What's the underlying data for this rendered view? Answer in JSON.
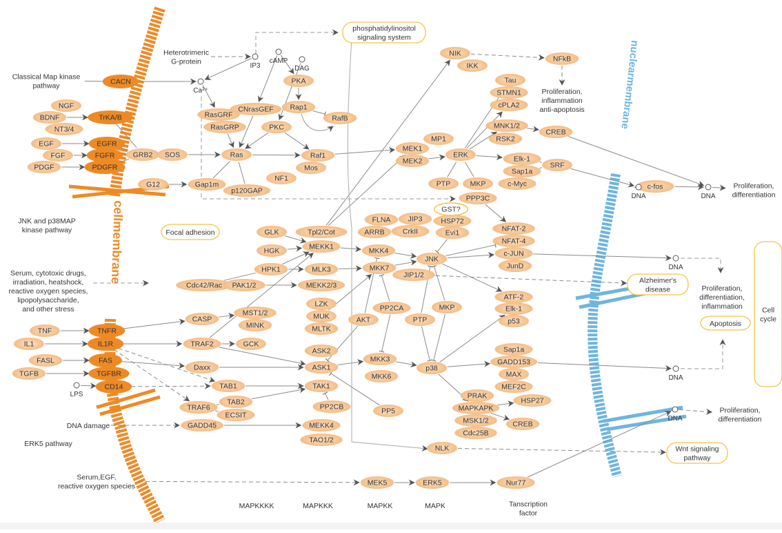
{
  "colors": {
    "gene_fill": "#f5c38e",
    "gene_center": "#fbe0c2",
    "receptor_fill": "#ee8a25",
    "pathway_border": "#f3c443",
    "cell_membrane": "#ee8a25",
    "nuclear_membrane": "#6fb5de",
    "edge": "#8a8a8a",
    "arrowhead": "#555555",
    "text": "#333333"
  },
  "membranes": {
    "cell_membrane_text": "cellmembrane",
    "nuclear_membrane_text": "nuclearmembrane"
  },
  "nodes": [
    {
      "id": "CACN",
      "label": "CACN",
      "kind": "receptor"
    },
    {
      "id": "TrKA",
      "label": "TrKA/B",
      "kind": "receptor"
    },
    {
      "id": "EGFR",
      "label": "EGFR",
      "kind": "receptor"
    },
    {
      "id": "FGFR",
      "label": "FGFR",
      "kind": "receptor"
    },
    {
      "id": "PDGFR",
      "label": "PDGFR",
      "kind": "receptor"
    },
    {
      "id": "TNFR",
      "label": "TNFR",
      "kind": "receptor"
    },
    {
      "id": "IL1R",
      "label": "IL1R",
      "kind": "receptor"
    },
    {
      "id": "FAS",
      "label": "FAS",
      "kind": "receptor"
    },
    {
      "id": "TGFBR",
      "label": "TGFBR",
      "kind": "receptor"
    },
    {
      "id": "CD14",
      "label": "CD14",
      "kind": "receptor"
    },
    {
      "id": "NGF",
      "label": "NGF",
      "kind": "gene"
    },
    {
      "id": "BDNF",
      "label": "BDNF",
      "kind": "gene"
    },
    {
      "id": "NT34",
      "label": "NT3/4",
      "kind": "gene"
    },
    {
      "id": "EGF",
      "label": "EGF",
      "kind": "gene"
    },
    {
      "id": "FGF",
      "label": "FGF",
      "kind": "gene"
    },
    {
      "id": "PDGF",
      "label": "PDGF",
      "kind": "gene"
    },
    {
      "id": "TNF",
      "label": "TNF",
      "kind": "gene"
    },
    {
      "id": "IL1",
      "label": "IL1",
      "kind": "gene"
    },
    {
      "id": "FASL",
      "label": "FASL",
      "kind": "gene"
    },
    {
      "id": "TGFB",
      "label": "TGFB",
      "kind": "gene"
    },
    {
      "id": "GRB2",
      "label": "GRB2",
      "kind": "gene"
    },
    {
      "id": "SOS",
      "label": "SOS",
      "kind": "gene"
    },
    {
      "id": "G12",
      "label": "G12",
      "kind": "gene"
    },
    {
      "id": "Gap1m",
      "label": "Gap1m",
      "kind": "gene"
    },
    {
      "id": "Ras",
      "label": "Ras",
      "kind": "gene"
    },
    {
      "id": "p120GAP",
      "label": "p120GAP",
      "kind": "gene"
    },
    {
      "id": "NF1",
      "label": "NF1",
      "kind": "gene"
    },
    {
      "id": "RasGRF",
      "label": "RasGRF",
      "kind": "gene"
    },
    {
      "id": "RasGRP",
      "label": "RasGRP",
      "kind": "gene"
    },
    {
      "id": "CNrasGEF",
      "label": "CNrasGEF",
      "kind": "gene"
    },
    {
      "id": "PKC",
      "label": "PKC",
      "kind": "gene"
    },
    {
      "id": "PKA",
      "label": "PKA",
      "kind": "gene"
    },
    {
      "id": "Rap1",
      "label": "Rap1",
      "kind": "gene"
    },
    {
      "id": "RafB",
      "label": "RafB",
      "kind": "gene"
    },
    {
      "id": "Raf1",
      "label": "Raf1",
      "kind": "gene"
    },
    {
      "id": "Mos",
      "label": "Mos",
      "kind": "gene"
    },
    {
      "id": "MEK1",
      "label": "MEK1",
      "kind": "gene"
    },
    {
      "id": "MEK2",
      "label": "MEK2",
      "kind": "gene"
    },
    {
      "id": "MP1",
      "label": "MP1",
      "kind": "gene"
    },
    {
      "id": "ERK",
      "label": "ERK",
      "kind": "gene"
    },
    {
      "id": "PTP1",
      "label": "PTP",
      "kind": "gene"
    },
    {
      "id": "MKP1",
      "label": "MKP",
      "kind": "gene"
    },
    {
      "id": "NIK",
      "label": "NIK",
      "kind": "gene"
    },
    {
      "id": "IKK",
      "label": "IKK",
      "kind": "gene"
    },
    {
      "id": "NFkB",
      "label": "NFkB",
      "kind": "gene"
    },
    {
      "id": "Tau",
      "label": "Tau",
      "kind": "gene"
    },
    {
      "id": "STMN1",
      "label": "STMN1",
      "kind": "gene"
    },
    {
      "id": "cPLA2",
      "label": "cPLA2",
      "kind": "gene"
    },
    {
      "id": "MNK",
      "label": "MNK1/2",
      "kind": "gene"
    },
    {
      "id": "RSK2",
      "label": "RSK2",
      "kind": "gene"
    },
    {
      "id": "CREB1",
      "label": "CREB",
      "kind": "gene"
    },
    {
      "id": "Elk1a",
      "label": "Elk-1",
      "kind": "gene"
    },
    {
      "id": "Sap1a1",
      "label": "Sap1a",
      "kind": "gene"
    },
    {
      "id": "SRF",
      "label": "SRF",
      "kind": "gene"
    },
    {
      "id": "cMyc",
      "label": "c-Myc",
      "kind": "gene"
    },
    {
      "id": "PPP3C",
      "label": "PPP3C",
      "kind": "gene"
    },
    {
      "id": "cfos",
      "label": "c-fos",
      "kind": "gene"
    },
    {
      "id": "GST",
      "label": "GST?",
      "kind": "outline"
    },
    {
      "id": "FLNA",
      "label": "FLNA",
      "kind": "gene"
    },
    {
      "id": "JIP3",
      "label": "JIP3",
      "kind": "gene"
    },
    {
      "id": "HSP72",
      "label": "HSP72",
      "kind": "gene"
    },
    {
      "id": "ARRB",
      "label": "ARRB",
      "kind": "gene"
    },
    {
      "id": "CrkII",
      "label": "CrkII",
      "kind": "gene"
    },
    {
      "id": "Evi1",
      "label": "Evi1",
      "kind": "gene"
    },
    {
      "id": "NFAT2",
      "label": "NFAT-2",
      "kind": "gene"
    },
    {
      "id": "NFAT4",
      "label": "NFAT-4",
      "kind": "gene"
    },
    {
      "id": "cJUN",
      "label": "c-JUN",
      "kind": "gene"
    },
    {
      "id": "JunD",
      "label": "JunD",
      "kind": "gene"
    },
    {
      "id": "JNK",
      "label": "JNK",
      "kind": "gene"
    },
    {
      "id": "JIP12",
      "label": "JIP1/2",
      "kind": "gene"
    },
    {
      "id": "MKK4",
      "label": "MKK4",
      "kind": "gene"
    },
    {
      "id": "MKK7",
      "label": "MKK7",
      "kind": "gene"
    },
    {
      "id": "GLK",
      "label": "GLK",
      "kind": "gene"
    },
    {
      "id": "Tpl2",
      "label": "Tpl2/Cot",
      "kind": "gene"
    },
    {
      "id": "MEKK1",
      "label": "MEKK1",
      "kind": "gene"
    },
    {
      "id": "HGK",
      "label": "HGK",
      "kind": "gene"
    },
    {
      "id": "HPK1",
      "label": "HPK1",
      "kind": "gene"
    },
    {
      "id": "MLK3",
      "label": "MLK3",
      "kind": "gene"
    },
    {
      "id": "Cdc42",
      "label": "Cdc42/Rac",
      "kind": "gene"
    },
    {
      "id": "PAK",
      "label": "PAK1/2",
      "kind": "gene"
    },
    {
      "id": "MEKK23",
      "label": "MEKK2/3",
      "kind": "gene"
    },
    {
      "id": "LZK",
      "label": "LZK",
      "kind": "gene"
    },
    {
      "id": "MUK",
      "label": "MUK",
      "kind": "gene"
    },
    {
      "id": "MLTK",
      "label": "MLTK",
      "kind": "gene"
    },
    {
      "id": "MST",
      "label": "MST1/2",
      "kind": "gene"
    },
    {
      "id": "MINK",
      "label": "MINK",
      "kind": "gene"
    },
    {
      "id": "CASP",
      "label": "CASP",
      "kind": "gene"
    },
    {
      "id": "TRAF2",
      "label": "TRAF2",
      "kind": "gene"
    },
    {
      "id": "GCK",
      "label": "GCK",
      "kind": "gene"
    },
    {
      "id": "ASK2",
      "label": "ASK2",
      "kind": "gene"
    },
    {
      "id": "ASK1",
      "label": "ASK1",
      "kind": "gene"
    },
    {
      "id": "Daxx",
      "label": "Daxx",
      "kind": "gene"
    },
    {
      "id": "TAB1",
      "label": "TAB1",
      "kind": "gene"
    },
    {
      "id": "TAK1",
      "label": "TAK1",
      "kind": "gene"
    },
    {
      "id": "TRAF6",
      "label": "TRAF6",
      "kind": "gene"
    },
    {
      "id": "TAB2",
      "label": "TAB2",
      "kind": "gene"
    },
    {
      "id": "ECSIT",
      "label": "ECSIT",
      "kind": "gene"
    },
    {
      "id": "PP2CB",
      "label": "PP2CB",
      "kind": "gene"
    },
    {
      "id": "GADD45",
      "label": "GADD45",
      "kind": "gene"
    },
    {
      "id": "MEKK4",
      "label": "MEKK4",
      "kind": "gene"
    },
    {
      "id": "TAO",
      "label": "TAO1/2",
      "kind": "gene"
    },
    {
      "id": "AKT",
      "label": "AKT",
      "kind": "gene"
    },
    {
      "id": "PP2CA",
      "label": "PP2CA",
      "kind": "gene"
    },
    {
      "id": "MKK3",
      "label": "MKK3",
      "kind": "gene"
    },
    {
      "id": "MKK6",
      "label": "MKK6",
      "kind": "gene"
    },
    {
      "id": "PTP2",
      "label": "PTP",
      "kind": "gene"
    },
    {
      "id": "MKP2",
      "label": "MKP",
      "kind": "gene"
    },
    {
      "id": "p38",
      "label": "p38",
      "kind": "gene"
    },
    {
      "id": "PP5",
      "label": "PP5",
      "kind": "gene"
    },
    {
      "id": "ATF2",
      "label": "ATF-2",
      "kind": "gene"
    },
    {
      "id": "Elk1b",
      "label": "Elk-1",
      "kind": "gene"
    },
    {
      "id": "p53",
      "label": "p53",
      "kind": "gene"
    },
    {
      "id": "Sap1a2",
      "label": "Sap1a",
      "kind": "gene"
    },
    {
      "id": "GADD153",
      "label": "GADD153",
      "kind": "gene"
    },
    {
      "id": "MAX",
      "label": "MAX",
      "kind": "gene"
    },
    {
      "id": "MEF2C",
      "label": "MEF2C",
      "kind": "gene"
    },
    {
      "id": "PRAK",
      "label": "PRAK",
      "kind": "gene"
    },
    {
      "id": "MAPKAPK",
      "label": "MAPKAPK",
      "kind": "gene"
    },
    {
      "id": "HSP27",
      "label": "HSP27",
      "kind": "gene"
    },
    {
      "id": "MSK",
      "label": "MSK1/2",
      "kind": "gene"
    },
    {
      "id": "CREB2",
      "label": "CREB",
      "kind": "gene"
    },
    {
      "id": "Cdc25B",
      "label": "Cdc25B",
      "kind": "gene"
    },
    {
      "id": "NLK",
      "label": "NLK",
      "kind": "gene"
    },
    {
      "id": "MEK5",
      "label": "MEK5",
      "kind": "gene"
    },
    {
      "id": "ERK5",
      "label": "ERK5",
      "kind": "gene"
    },
    {
      "id": "Nur77",
      "label": "Nur77",
      "kind": "gene"
    }
  ],
  "compounds": [
    {
      "id": "IP3",
      "label": "IP3"
    },
    {
      "id": "cAMP",
      "label": "cAMP"
    },
    {
      "id": "DAG",
      "label": "DAG"
    },
    {
      "id": "Ca",
      "label": "Ca²⁺"
    },
    {
      "id": "LPS",
      "label": "LPS"
    },
    {
      "id": "DNA1",
      "label": "DNA"
    },
    {
      "id": "DNA2",
      "label": "DNA"
    },
    {
      "id": "DNA3",
      "label": "DNA"
    },
    {
      "id": "DNA4",
      "label": "DNA"
    },
    {
      "id": "DNA5",
      "label": "DNA"
    }
  ],
  "pathways": [
    {
      "id": "PI",
      "lines": [
        "phosphatidylinositol",
        "signaling system"
      ]
    },
    {
      "id": "FOCAL",
      "lines": [
        "Focal adhesion"
      ]
    },
    {
      "id": "ALZ",
      "lines": [
        "Alzheimer's",
        "disease"
      ]
    },
    {
      "id": "APOP",
      "lines": [
        "Apoptosis"
      ]
    },
    {
      "id": "WNT",
      "lines": [
        "Wnt signaling",
        "pathway"
      ]
    },
    {
      "id": "CELLCYCLE",
      "lines": [
        "Cell",
        "cycle"
      ]
    }
  ],
  "labels": [
    {
      "id": "classical",
      "lines": [
        "Classical Map kinase",
        "pathway"
      ]
    },
    {
      "id": "hetero",
      "lines": [
        "Heterotrimeric",
        "G-protein"
      ]
    },
    {
      "id": "jnk",
      "lines": [
        "JNK and p38MAP",
        "kinase pathway"
      ]
    },
    {
      "id": "stress",
      "lines": [
        "Serum, cytotoxic drugs,",
        "irradiation, heatshock,",
        "reactive oxygen species,",
        "lipopolysaccharide,",
        "and other stress"
      ]
    },
    {
      "id": "dnadmg",
      "lines": [
        "DNA  damage"
      ]
    },
    {
      "id": "erk5",
      "lines": [
        "ERK5 pathway"
      ]
    },
    {
      "id": "serum",
      "lines": [
        "Serum,EGF,",
        "reactive oxygen species"
      ]
    },
    {
      "id": "out0",
      "lines": [
        "Proliferation,",
        "inflammation",
        "anti-apoptosis"
      ]
    },
    {
      "id": "out1",
      "lines": [
        "Proliferation,",
        "differentiation"
      ]
    },
    {
      "id": "out2",
      "lines": [
        "Proliferation,",
        "differentiation,",
        "inflammation"
      ]
    },
    {
      "id": "out3",
      "lines": [
        "Proliferation,",
        "differentiation"
      ]
    },
    {
      "id": "col1",
      "lines": [
        "MAPKKKK"
      ]
    },
    {
      "id": "col2",
      "lines": [
        "MAPKKK"
      ]
    },
    {
      "id": "col3",
      "lines": [
        "MAPKK"
      ]
    },
    {
      "id": "col4",
      "lines": [
        "MAPK"
      ]
    },
    {
      "id": "col5",
      "lines": [
        "Tanscription",
        "factor"
      ]
    }
  ],
  "edges": [
    [
      "BDNF",
      "TrKA",
      "a"
    ],
    [
      "EGF",
      "EGFR",
      "a"
    ],
    [
      "FGF",
      "FGFR",
      "a"
    ],
    [
      "PDGF",
      "PDGFR",
      "a"
    ],
    [
      "TrKA",
      "GRB2",
      "l"
    ],
    [
      "EGFR",
      "GRB2",
      "l"
    ],
    [
      "FGFR",
      "GRB2",
      "l"
    ],
    [
      "PDGFR",
      "GRB2",
      "l"
    ],
    [
      "GRB2",
      "SOS",
      "l"
    ],
    [
      "SOS",
      "Ras",
      "a"
    ],
    [
      "G12",
      "Gap1m",
      "a"
    ],
    [
      "Gap1m",
      "Ras",
      "l"
    ],
    [
      "p120GAP",
      "Ras",
      "l"
    ],
    [
      "classical",
      "CACN",
      "l"
    ],
    [
      "CACN",
      "Ca",
      "a"
    ],
    [
      "IP3",
      "Ca",
      "a"
    ],
    [
      "Ca",
      "RasGRF",
      "a"
    ],
    [
      "hetero",
      "IP3",
      "d"
    ],
    [
      "cAMP",
      "CNrasGEF",
      "a"
    ],
    [
      "cAMP",
      "PKA",
      "a"
    ],
    [
      "DAG",
      "PKC",
      "a"
    ],
    [
      "PKA",
      "Rap1",
      "a"
    ],
    [
      "Rap1",
      "RafB",
      "i"
    ],
    [
      "CNrasGEF",
      "Ras",
      "a"
    ],
    [
      "RasGRP",
      "Ras",
      "a"
    ],
    [
      "PKC",
      "Ras",
      "a"
    ],
    [
      "PKC",
      "Raf1",
      "a"
    ],
    [
      "Ras",
      "Raf1",
      "a"
    ],
    [
      "Raf1",
      "MEK1",
      "a"
    ],
    [
      "MEK2",
      "ERK",
      "a"
    ],
    [
      "ERK",
      "Tau",
      "a"
    ],
    [
      "ERK",
      "cPLA2",
      "a"
    ],
    [
      "ERK",
      "MNK",
      "a"
    ],
    [
      "ERK",
      "Elk1a",
      "a"
    ],
    [
      "Elk1a",
      "SRF",
      "l"
    ],
    [
      "Sap1a1",
      "SRF",
      "l"
    ],
    [
      "SRF",
      "DNA1",
      "a"
    ],
    [
      "DNA1",
      "cfos",
      "a"
    ],
    [
      "cfos",
      "DNA2",
      "a"
    ],
    [
      "CREB1",
      "DNA2",
      "a"
    ],
    [
      "MNK",
      "CREB1",
      "a"
    ],
    [
      "DNA2",
      "out1",
      "a"
    ],
    [
      "NIK",
      "NFkB",
      "d"
    ],
    [
      "NFkB",
      "out0",
      "d"
    ],
    [
      "PTP1",
      "ERK",
      "l"
    ],
    [
      "MKP1",
      "ERK",
      "l"
    ],
    [
      "PPP3C",
      "NFAT2",
      "a"
    ],
    [
      "Tpl2",
      "NIK",
      "a"
    ],
    [
      "Tpl2",
      "MEK1",
      "a"
    ],
    [
      "GLK",
      "MEKK1",
      "a"
    ],
    [
      "HGK",
      "MEKK1",
      "a"
    ],
    [
      "HPK1",
      "MEKK1",
      "a"
    ],
    [
      "Cdc42",
      "HPK1",
      "l"
    ],
    [
      "Cdc42",
      "PAK",
      "a"
    ],
    [
      "PAK",
      "MEKK23",
      "a"
    ],
    [
      "HPK1",
      "MLK3",
      "a"
    ],
    [
      "MLK3",
      "MKK7",
      "a"
    ],
    [
      "MEKK1",
      "MKK4",
      "a"
    ],
    [
      "MKK4",
      "JNK",
      "a"
    ],
    [
      "MKK7",
      "JNK",
      "a"
    ],
    [
      "MUK",
      "MKK7",
      "a"
    ],
    [
      "JNK",
      "NFAT4",
      "i"
    ],
    [
      "JNK",
      "cJUN",
      "a"
    ],
    [
      "JNK",
      "ATF2",
      "a"
    ],
    [
      "Evi1",
      "JNK",
      "i"
    ],
    [
      "TNF",
      "TNFR",
      "a"
    ],
    [
      "IL1",
      "IL1R",
      "a"
    ],
    [
      "FASL",
      "FAS",
      "a"
    ],
    [
      "TGFB",
      "TGFBR",
      "a"
    ],
    [
      "LPS",
      "CD14",
      "a"
    ],
    [
      "TNFR",
      "CASP",
      "a"
    ],
    [
      "IL1R",
      "TRAF2",
      "a"
    ],
    [
      "CASP",
      "MST",
      "a"
    ],
    [
      "TRAF2",
      "GCK",
      "a"
    ],
    [
      "TRAF2",
      "ASK1",
      "a"
    ],
    [
      "TRAF2",
      "MEKK1",
      "a"
    ],
    [
      "FAS",
      "Daxx",
      "a"
    ],
    [
      "Daxx",
      "ASK1",
      "a"
    ],
    [
      "IL1R",
      "TAB1",
      "d"
    ],
    [
      "IL1R",
      "TRAF6",
      "d"
    ],
    [
      "CD14",
      "TAB1",
      "d"
    ],
    [
      "TAB1",
      "TAK1",
      "a"
    ],
    [
      "TAB2",
      "TAK1",
      "a"
    ],
    [
      "TRAF6",
      "TAB2",
      "l"
    ],
    [
      "TRAF6",
      "ECSIT",
      "l"
    ],
    [
      "PP2CB",
      "TAK1",
      "i"
    ],
    [
      "dnadmg",
      "GADD45",
      "d"
    ],
    [
      "GADD45",
      "MEKK4",
      "a"
    ],
    [
      "ASK1",
      "MKK3",
      "a"
    ],
    [
      "MKK3",
      "p38",
      "a"
    ],
    [
      "AKT",
      "ASK1",
      "i"
    ],
    [
      "PP2CA",
      "MKK3",
      "i"
    ],
    [
      "PP2CA",
      "MKK7",
      "i"
    ],
    [
      "AKT",
      "MKK4",
      "i"
    ],
    [
      "PP5",
      "ASK1",
      "i"
    ],
    [
      "PTP2",
      "JNK",
      "i"
    ],
    [
      "PTP2",
      "p38",
      "i"
    ],
    [
      "MKP2",
      "JNK",
      "i"
    ],
    [
      "MKP2",
      "p38",
      "i"
    ],
    [
      "p38",
      "Elk1b",
      "a"
    ],
    [
      "p38",
      "GADD153",
      "a"
    ],
    [
      "p38",
      "MAPKAPK",
      "a"
    ],
    [
      "MAPKAPK",
      "HSP27",
      "a"
    ],
    [
      "MAPKAPK",
      "CREB2",
      "a"
    ],
    [
      "GADD153",
      "DNA4",
      "a"
    ],
    [
      "cJUN",
      "DNA3",
      "a"
    ],
    [
      "Nur77",
      "DNA5",
      "a"
    ],
    [
      "DNA5",
      "out3",
      "d"
    ],
    [
      "serum",
      "MEK5",
      "d"
    ],
    [
      "MEK5",
      "ERK5",
      "a"
    ],
    [
      "ERK5",
      "Nur77",
      "a"
    ],
    [
      "NLK",
      "WNT",
      "d"
    ],
    [
      "JIP12",
      "ALZ",
      "d"
    ]
  ]
}
